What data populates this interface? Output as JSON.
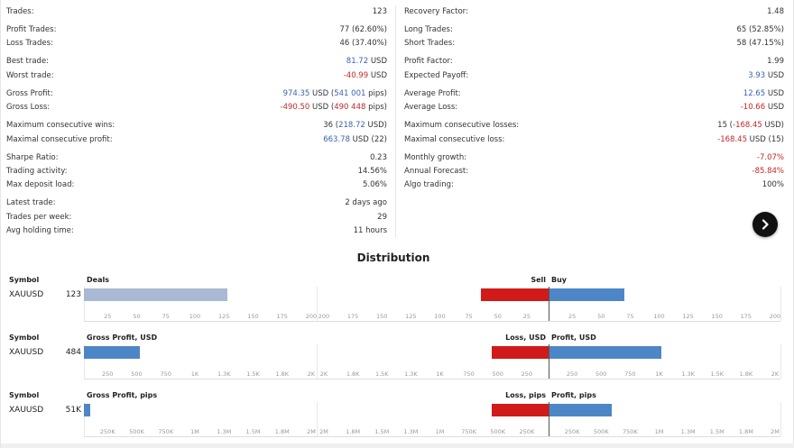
{
  "stats": {
    "left": [
      {
        "label": "Trades:",
        "value": "123"
      },
      {
        "label": "Profit Trades:",
        "value": "77 (62.60%)",
        "gap": true
      },
      {
        "label": "Loss Trades:",
        "value": "46 (37.40%)"
      },
      {
        "label": "Best trade:",
        "value_parts": [
          {
            "t": "81.72",
            "c": "blue"
          },
          {
            "t": " USD"
          }
        ],
        "gap": true
      },
      {
        "label": "Worst trade:",
        "value_parts": [
          {
            "t": "-40.99",
            "c": "red"
          },
          {
            "t": " USD"
          }
        ]
      },
      {
        "label": "Gross Profit:",
        "value_parts": [
          {
            "t": "974.35",
            "c": "blue"
          },
          {
            "t": " USD ("
          },
          {
            "t": "541 001",
            "c": "blue"
          },
          {
            "t": " pips)"
          }
        ],
        "gap": true
      },
      {
        "label": "Gross Loss:",
        "value_parts": [
          {
            "t": "-490.50",
            "c": "red"
          },
          {
            "t": " USD ("
          },
          {
            "t": "490 448",
            "c": "red"
          },
          {
            "t": " pips)"
          }
        ]
      },
      {
        "label": "Maximum consecutive wins:",
        "value_parts": [
          {
            "t": "36 ("
          },
          {
            "t": "218.72",
            "c": "blue"
          },
          {
            "t": " USD)"
          }
        ],
        "gap": true
      },
      {
        "label": "Maximal consecutive profit:",
        "value_parts": [
          {
            "t": "663.78",
            "c": "blue"
          },
          {
            "t": " USD (22)"
          }
        ]
      },
      {
        "label": "Sharpe Ratio:",
        "value": "0.23",
        "gap": true
      },
      {
        "label": "Trading activity:",
        "value": "14.56%"
      },
      {
        "label": "Max deposit load:",
        "value": "5.06%"
      },
      {
        "label": "Latest trade:",
        "value": "2 days ago",
        "gap": true
      },
      {
        "label": "Trades per week:",
        "value": "29"
      },
      {
        "label": "Avg holding time:",
        "value": "11 hours"
      }
    ],
    "right": [
      {
        "label": "Recovery Factor:",
        "value": "1.48"
      },
      {
        "label": "Long Trades:",
        "value": "65 (52.85%)",
        "gap": true
      },
      {
        "label": "Short Trades:",
        "value": "58 (47.15%)"
      },
      {
        "label": "Profit Factor:",
        "value": "1.99",
        "gap": true
      },
      {
        "label": "Expected Payoff:",
        "value_parts": [
          {
            "t": "3.93",
            "c": "blue"
          },
          {
            "t": " USD"
          }
        ]
      },
      {
        "label": "Average Profit:",
        "value_parts": [
          {
            "t": "12.65",
            "c": "blue"
          },
          {
            "t": " USD"
          }
        ],
        "gap": true
      },
      {
        "label": "Average Loss:",
        "value_parts": [
          {
            "t": "-10.66",
            "c": "red"
          },
          {
            "t": " USD"
          }
        ]
      },
      {
        "label": "Maximum consecutive losses:",
        "value_parts": [
          {
            "t": "15 ("
          },
          {
            "t": "-168.45",
            "c": "red"
          },
          {
            "t": " USD)"
          }
        ],
        "gap": true
      },
      {
        "label": "Maximal consecutive loss:",
        "value_parts": [
          {
            "t": "-168.45",
            "c": "red"
          },
          {
            "t": " USD (15)"
          }
        ]
      },
      {
        "label": "Monthly growth:",
        "value_parts": [
          {
            "t": "-7.07%",
            "c": "red"
          }
        ],
        "gap": true
      },
      {
        "label": "Annual Forecast:",
        "value_parts": [
          {
            "t": "-85.84%",
            "c": "red"
          }
        ]
      },
      {
        "label": "Algo trading:",
        "value": "100%"
      }
    ]
  },
  "distribution": {
    "title": "Distribution",
    "colors": {
      "gray": "#a9b8d3",
      "blue": "#4d86c6",
      "red": "#d11a1a"
    },
    "blocks": [
      {
        "symbol_header": "Symbol",
        "symbol": "XAUUSD",
        "metric_label": "Deals",
        "metric_value": "123",
        "metric_amount": 123,
        "metric_color": "gray",
        "left_ticks": [
          "25",
          "50",
          "75",
          "100",
          "125",
          "150",
          "175",
          "200"
        ],
        "left_max": 200,
        "neg_label": "Sell",
        "pos_label": "Buy",
        "neg_amount": 58,
        "pos_amount": 65,
        "right_neg_ticks": [
          "200",
          "175",
          "150",
          "125",
          "100",
          "75",
          "50",
          "25"
        ],
        "right_pos_ticks": [
          "25",
          "50",
          "75",
          "100",
          "125",
          "150",
          "175",
          "200"
        ],
        "right_max": 200
      },
      {
        "symbol_header": "Symbol",
        "symbol": "XAUUSD",
        "metric_label": "Gross Profit, USD",
        "metric_value": "484",
        "metric_amount": 484,
        "metric_color": "blue",
        "left_ticks": [
          "250",
          "500",
          "750",
          "1K",
          "1.3K",
          "1.5K",
          "1.8K",
          "2K"
        ],
        "left_max": 2000,
        "neg_label": "Loss, USD",
        "pos_label": "Profit, USD",
        "neg_amount": 490.5,
        "pos_amount": 974.35,
        "right_neg_ticks": [
          "2K",
          "1.8K",
          "1.5K",
          "1.3K",
          "1K",
          "750",
          "500",
          "250"
        ],
        "right_pos_ticks": [
          "250",
          "500",
          "750",
          "1K",
          "1.3K",
          "1.5K",
          "1.8K",
          "2K"
        ],
        "right_max": 2000
      },
      {
        "symbol_header": "Symbol",
        "symbol": "XAUUSD",
        "metric_label": "Gross Profit, pips",
        "metric_value": "51K",
        "metric_amount": 51000,
        "metric_color": "blue",
        "left_ticks": [
          "250K",
          "500K",
          "750K",
          "1M",
          "1.3M",
          "1.5M",
          "1.8M",
          "2M"
        ],
        "left_max": 2000000,
        "neg_label": "Loss, pips",
        "pos_label": "Profit, pips",
        "neg_amount": 490448,
        "pos_amount": 541001,
        "right_neg_ticks": [
          "2M",
          "1.8M",
          "1.5M",
          "1.3M",
          "1M",
          "750K",
          "500K",
          "250K"
        ],
        "right_pos_ticks": [
          "250K",
          "500K",
          "750K",
          "1M",
          "1.3M",
          "1.5M",
          "1.8M",
          "2M"
        ],
        "right_max": 2000000
      }
    ]
  }
}
